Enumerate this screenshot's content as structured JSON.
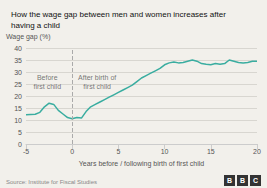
{
  "chart_data": {
    "type": "line",
    "title": "How the wage gap between men and women increases after\nhaving a child",
    "ylabel": "Wage gap (%)",
    "xlabel": "Years before / following birth of first child",
    "source": "Source: Institute for Fiscal Studies",
    "logo": "BBC",
    "color": "#3aada0",
    "background_color": "#f2f0eb",
    "vline_x": 0,
    "annotations": [
      {
        "x": -2.7,
        "y": 26,
        "text": "Before\nfirst child"
      },
      {
        "x": 2.7,
        "y": 26,
        "text": "After birth of\nfirst child"
      }
    ],
    "xlim": [
      -5,
      20
    ],
    "ylim": [
      0,
      40
    ],
    "xticks": [
      -5,
      0,
      5,
      10,
      15,
      20
    ],
    "yticks": [
      0,
      5,
      10,
      15,
      20,
      25,
      30,
      35,
      40
    ],
    "grid": true,
    "x": [
      -5,
      -4.5,
      -4,
      -3.5,
      -3,
      -2.5,
      -2,
      -1.5,
      -1,
      -0.5,
      0,
      0.5,
      1,
      1.5,
      2,
      2.5,
      3,
      3.5,
      4,
      4.5,
      5,
      5.5,
      6,
      6.5,
      7,
      7.5,
      8,
      8.5,
      9,
      9.5,
      10,
      10.5,
      11,
      11.5,
      12,
      12.5,
      13,
      13.5,
      14,
      14.5,
      15,
      15.5,
      16,
      16.5,
      17,
      17.5,
      18,
      18.5,
      19,
      19.5,
      20
    ],
    "values": [
      12.2,
      12.3,
      12.4,
      13.2,
      15.5,
      17.0,
      16.5,
      14.0,
      12.5,
      11.0,
      10.5,
      11.0,
      10.8,
      13.5,
      15.5,
      16.5,
      17.5,
      18.5,
      19.5,
      20.5,
      21.5,
      22.5,
      23.5,
      24.5,
      26.0,
      27.5,
      28.5,
      29.5,
      30.5,
      31.5,
      33.0,
      33.8,
      34.2,
      33.8,
      34.0,
      34.5,
      35.0,
      34.5,
      33.5,
      33.2,
      33.0,
      33.5,
      33.2,
      33.5,
      35.0,
      34.5,
      34.0,
      33.8,
      34.0,
      34.5,
      34.5
    ]
  }
}
